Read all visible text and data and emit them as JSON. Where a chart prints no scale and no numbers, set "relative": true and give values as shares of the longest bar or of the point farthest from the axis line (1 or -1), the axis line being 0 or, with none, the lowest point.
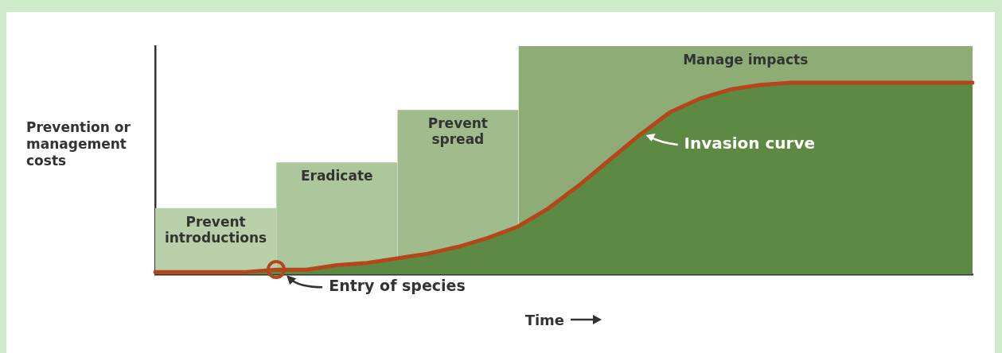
{
  "chart_data": {
    "type": "area",
    "relative": true,
    "xlabel": "Time",
    "ylabel": "Prevention or management costs",
    "categories": [
      null,
      null,
      null,
      null,
      null,
      null,
      null,
      null,
      null,
      null,
      null,
      null,
      null,
      null,
      null,
      null,
      null,
      null,
      null,
      null,
      null,
      null,
      null,
      null,
      null,
      null,
      null,
      null
    ],
    "series": [
      {
        "name": "Prevent introductions",
        "color": "#b9cfa9",
        "values": [
          0.29,
          0.29,
          0.29,
          0.29,
          0.29,
          null,
          null,
          null,
          null,
          null,
          null,
          null,
          null,
          null,
          null,
          null,
          null,
          null,
          null,
          null,
          null,
          null,
          null,
          null,
          null,
          null,
          null,
          null
        ]
      },
      {
        "name": "Eradicate",
        "color": "#adc79c",
        "values": [
          null,
          null,
          null,
          null,
          0.49,
          0.49,
          0.49,
          0.49,
          0.49,
          null,
          null,
          null,
          null,
          null,
          null,
          null,
          null,
          null,
          null,
          null,
          null,
          null,
          null,
          null,
          null,
          null,
          null,
          null
        ]
      },
      {
        "name": "Prevent spread",
        "color": "#a0bc8c",
        "values": [
          null,
          null,
          null,
          null,
          null,
          null,
          null,
          null,
          0.72,
          0.72,
          0.72,
          0.72,
          0.72,
          null,
          null,
          null,
          null,
          null,
          null,
          null,
          null,
          null,
          null,
          null,
          null,
          null,
          null,
          null
        ]
      },
      {
        "name": "Manage impacts",
        "color": "#8dac76",
        "values": [
          null,
          null,
          null,
          null,
          null,
          null,
          null,
          null,
          null,
          null,
          null,
          null,
          1,
          1,
          1,
          1,
          1,
          1,
          1,
          1,
          1,
          1,
          1,
          1,
          1,
          1,
          1,
          1
        ]
      },
      {
        "color": "#5d8a43",
        "values": [
          0.01,
          0.01,
          0.01,
          0.01,
          0.02,
          0.02,
          0.04,
          0.05,
          0.07,
          0.09,
          0.12,
          0.16,
          0.21,
          0.29,
          0.39,
          0.5,
          0.61,
          0.71,
          0.77,
          0.81,
          0.83,
          0.84,
          0.84,
          0.84,
          0.84,
          0.84,
          0.84,
          0.84
        ]
      },
      {
        "type": "line",
        "name": "Invasion curve",
        "color": "#b5461c",
        "values": [
          0.01,
          0.01,
          0.01,
          0.01,
          0.02,
          0.02,
          0.04,
          0.05,
          0.07,
          0.09,
          0.12,
          0.16,
          0.21,
          0.29,
          0.39,
          0.5,
          0.61,
          0.71,
          0.77,
          0.81,
          0.83,
          0.84,
          0.84,
          0.84,
          0.84,
          0.84,
          0.84,
          0.84
        ]
      }
    ],
    "annotations": [
      "Entry of species"
    ]
  }
}
